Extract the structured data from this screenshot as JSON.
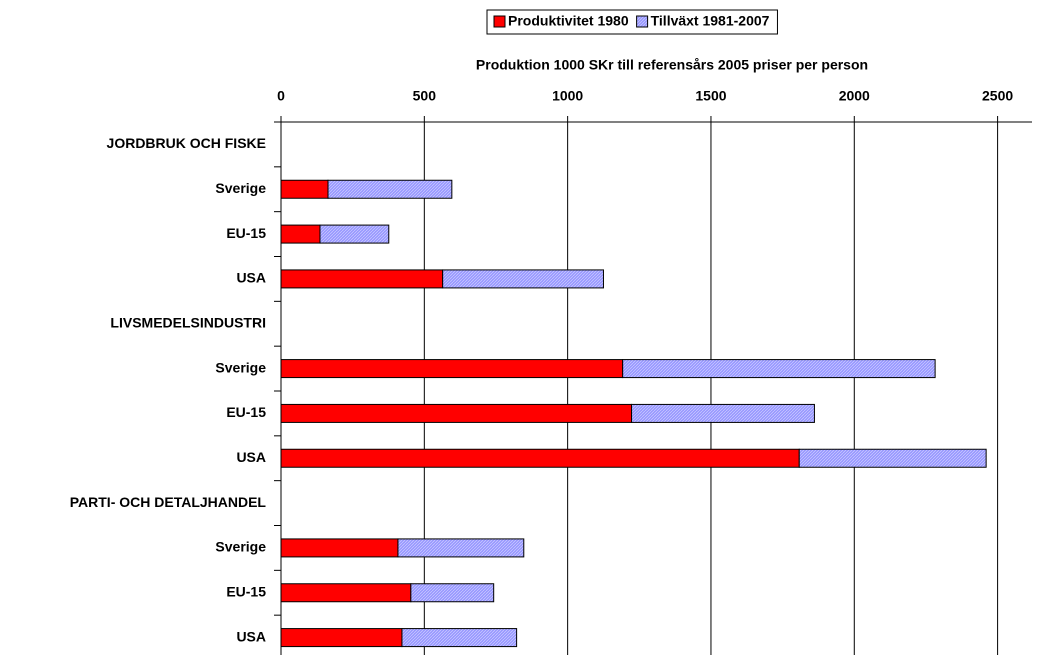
{
  "chart_data": {
    "type": "stacked-barh",
    "title": "Produktion 1000 SKr till referensårs 2005 priser per person",
    "categories": [
      "JORDBRUK OCH FISKE",
      "Sverige",
      "EU-15",
      "USA",
      "LIVSMEDELSINDUSTRI",
      "Sverige",
      "EU-15",
      "USA",
      "PARTI- OCH DETALJHANDEL",
      "Sverige",
      "EU-15",
      "USA"
    ],
    "series": [
      {
        "name": "Produktivitet 1980",
        "color": "#ff0000",
        "values": [
          null,
          164,
          136,
          564,
          null,
          1192,
          1223,
          1808,
          null,
          408,
          453,
          422
        ]
      },
      {
        "name": "Tillväxt 1981-2007",
        "color": "#9999ff",
        "values": [
          null,
          432,
          240,
          561,
          null,
          1090,
          638,
          652,
          null,
          439,
          289,
          400
        ]
      }
    ],
    "xlim": [
      0,
      2620
    ],
    "xticks": [
      0,
      500,
      1000,
      1500,
      2000,
      2500
    ],
    "grid": true,
    "legend": "top"
  }
}
